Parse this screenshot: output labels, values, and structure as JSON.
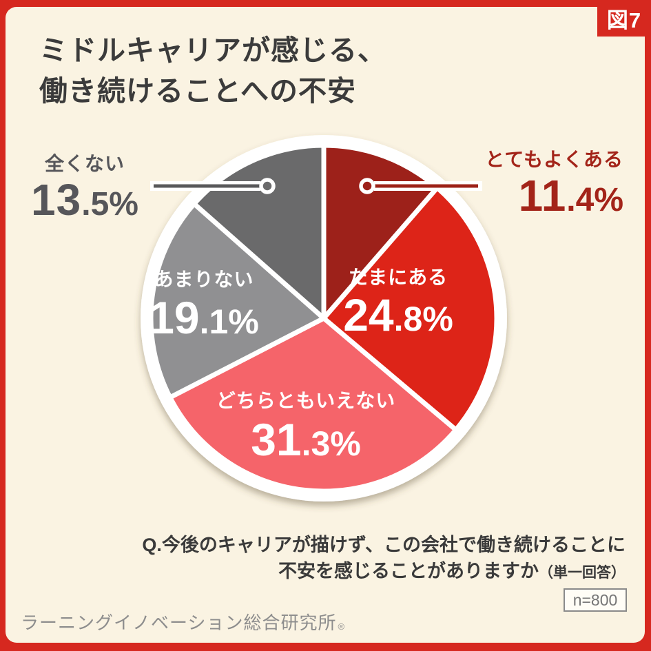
{
  "figure_tag": "図7",
  "title_lines": [
    "ミドルキャリアが感じる、",
    "働き続けることへの不安"
  ],
  "question_lines": [
    "Q.今後のキャリアが描けず、この会社で働き続けることに",
    "不安を感じることがありますか"
  ],
  "question_note": "（単一回答）",
  "sample_size": "n=800",
  "source": "ラーニングイノベーション総合研究所",
  "source_mark": "®",
  "colors": {
    "frame": "#d6281f",
    "panel_background": "#faf3e2",
    "badge_background": "#d6281f",
    "badge_text": "#ffffff",
    "title_text": "#3b3b3b",
    "question_text": "#3a3a3a",
    "source_text": "#8d8d8d",
    "pie_ring": "#ffffff"
  },
  "chart_data": {
    "type": "pie",
    "title": "ミドルキャリアが感じる、働き続けることへの不安",
    "unit": "%",
    "start_angle": "12-o'clock",
    "direction": "clockwise",
    "legend_position": "labels-on-slices-and-callouts",
    "slices": [
      {
        "label": "とてもよくある",
        "value": 11.4,
        "color": "#9d211a",
        "label_placement": "outside-right",
        "label_color": "#a32419",
        "callout_color": "#9c2117"
      },
      {
        "label": "たまにある",
        "value": 24.8,
        "color": "#dd2418",
        "label_placement": "inside",
        "label_color": "#ffffff"
      },
      {
        "label": "どちらともいえない",
        "value": 31.3,
        "color": "#f5646a",
        "label_placement": "inside",
        "label_color": "#ffffff"
      },
      {
        "label": "あまりない",
        "value": 19.1,
        "color": "#909092",
        "label_placement": "inside",
        "label_color": "#ffffff"
      },
      {
        "label": "全くない",
        "value": 13.5,
        "color": "#6a6a6b",
        "label_placement": "outside-left",
        "label_color": "#56565a",
        "callout_color": "#58585a"
      }
    ]
  }
}
